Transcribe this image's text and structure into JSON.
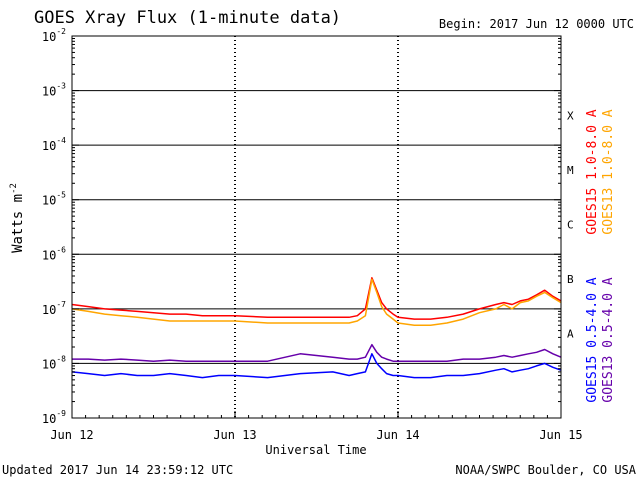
{
  "chart_data": {
    "type": "line",
    "title": "GOES Xray Flux (1-minute data)",
    "begin_label": "Begin:  2017 Jun 12 0000 UTC",
    "ylabel_text": "Watts m",
    "ylabel_sup": "-2",
    "xlabel": "Universal Time",
    "footer_left": "Updated 2017 Jun 14 23:59:12 UTC",
    "footer_right": "NOAA/SWPC Boulder, CO USA",
    "y_scale": "log",
    "ylim": [
      1e-09,
      0.01
    ],
    "y_ticks": [
      {
        "base": "10",
        "exp": "-2",
        "value": 0.01
      },
      {
        "base": "10",
        "exp": "-3",
        "value": 0.001
      },
      {
        "base": "10",
        "exp": "-4",
        "value": 0.0001
      },
      {
        "base": "10",
        "exp": "-5",
        "value": 1e-05
      },
      {
        "base": "10",
        "exp": "-6",
        "value": 1e-06
      },
      {
        "base": "10",
        "exp": "-7",
        "value": 1e-07
      },
      {
        "base": "10",
        "exp": "-8",
        "value": 1e-08
      },
      {
        "base": "10",
        "exp": "-9",
        "value": 1e-09
      }
    ],
    "x_ticks": [
      {
        "label": "Jun 12",
        "day": 0
      },
      {
        "label": "Jun 13",
        "day": 1
      },
      {
        "label": "Jun 14",
        "day": 2
      },
      {
        "label": "Jun 15",
        "day": 3
      }
    ],
    "flare_classes": [
      {
        "label": "X",
        "value": 0.0001
      },
      {
        "label": "M",
        "value": 1e-05
      },
      {
        "label": "C",
        "value": 1e-06
      },
      {
        "label": "B",
        "value": 1e-07
      },
      {
        "label": "A",
        "value": 1e-08
      }
    ],
    "series": [
      {
        "name": "GOES15 1.0-8.0 A",
        "color": "#ff0000",
        "x": [
          0.0,
          0.1,
          0.2,
          0.3,
          0.4,
          0.5,
          0.6,
          0.7,
          0.8,
          0.9,
          1.0,
          1.2,
          1.4,
          1.6,
          1.7,
          1.75,
          1.8,
          1.84,
          1.87,
          1.9,
          1.93,
          1.97,
          2.0,
          2.1,
          2.2,
          2.3,
          2.4,
          2.5,
          2.6,
          2.65,
          2.7,
          2.75,
          2.8,
          2.85,
          2.9,
          2.95,
          3.0
        ],
        "y": [
          1.2e-07,
          1.1e-07,
          1e-07,
          9.5e-08,
          9e-08,
          8.5e-08,
          8e-08,
          8e-08,
          7.5e-08,
          7.5e-08,
          7.5e-08,
          7e-08,
          7e-08,
          7e-08,
          7e-08,
          7.5e-08,
          1e-07,
          3.7e-07,
          2.2e-07,
          1.3e-07,
          1e-07,
          8e-08,
          7e-08,
          6.5e-08,
          6.5e-08,
          7e-08,
          8e-08,
          1e-07,
          1.2e-07,
          1.3e-07,
          1.2e-07,
          1.4e-07,
          1.5e-07,
          1.8e-07,
          2.2e-07,
          1.7e-07,
          1.4e-07
        ]
      },
      {
        "name": "GOES13 1.0-8.0 A",
        "color": "#ffa500",
        "x": [
          0.0,
          0.1,
          0.2,
          0.3,
          0.4,
          0.5,
          0.6,
          0.7,
          0.8,
          0.9,
          1.0,
          1.2,
          1.4,
          1.6,
          1.7,
          1.75,
          1.8,
          1.84,
          1.87,
          1.9,
          1.93,
          1.97,
          2.0,
          2.1,
          2.2,
          2.3,
          2.4,
          2.5,
          2.6,
          2.65,
          2.7,
          2.75,
          2.8,
          2.85,
          2.9,
          2.95,
          3.0
        ],
        "y": [
          1e-07,
          9e-08,
          8e-08,
          7.5e-08,
          7e-08,
          6.5e-08,
          6e-08,
          6e-08,
          6e-08,
          6e-08,
          6e-08,
          5.5e-08,
          5.5e-08,
          5.5e-08,
          5.5e-08,
          6e-08,
          7.5e-08,
          3.5e-07,
          2e-07,
          1.1e-07,
          8e-08,
          6.5e-08,
          5.5e-08,
          5e-08,
          5e-08,
          5.5e-08,
          6.5e-08,
          8.5e-08,
          1e-07,
          1.2e-07,
          1e-07,
          1.3e-07,
          1.4e-07,
          1.7e-07,
          2e-07,
          1.6e-07,
          1.3e-07
        ]
      },
      {
        "name": "GOES15 0.5-4.0 A",
        "color": "#0000ff",
        "x": [
          0.0,
          0.1,
          0.2,
          0.3,
          0.4,
          0.5,
          0.6,
          0.7,
          0.8,
          0.9,
          1.0,
          1.2,
          1.4,
          1.6,
          1.7,
          1.75,
          1.8,
          1.84,
          1.87,
          1.9,
          1.93,
          1.97,
          2.0,
          2.1,
          2.2,
          2.3,
          2.4,
          2.5,
          2.6,
          2.65,
          2.7,
          2.75,
          2.8,
          2.85,
          2.9,
          2.95,
          3.0
        ],
        "y": [
          7e-09,
          6.5e-09,
          6e-09,
          6.5e-09,
          6e-09,
          6e-09,
          6.5e-09,
          6e-09,
          5.5e-09,
          6e-09,
          6e-09,
          5.5e-09,
          6.5e-09,
          7e-09,
          6e-09,
          6.5e-09,
          7e-09,
          1.5e-08,
          1e-08,
          8e-09,
          6.5e-09,
          6e-09,
          6e-09,
          5.5e-09,
          5.5e-09,
          6e-09,
          6e-09,
          6.5e-09,
          7.5e-09,
          8e-09,
          7e-09,
          7.5e-09,
          8e-09,
          9e-09,
          1e-08,
          8.5e-09,
          7.5e-09
        ]
      },
      {
        "name": "GOES13 0.5-4.0 A",
        "color": "#6600aa",
        "x": [
          0.0,
          0.1,
          0.2,
          0.3,
          0.4,
          0.5,
          0.6,
          0.7,
          0.8,
          0.9,
          1.0,
          1.2,
          1.4,
          1.6,
          1.7,
          1.75,
          1.8,
          1.84,
          1.87,
          1.9,
          1.93,
          1.97,
          2.0,
          2.1,
          2.2,
          2.3,
          2.4,
          2.5,
          2.6,
          2.65,
          2.7,
          2.75,
          2.8,
          2.85,
          2.9,
          2.95,
          3.0
        ],
        "y": [
          1.2e-08,
          1.2e-08,
          1.15e-08,
          1.2e-08,
          1.15e-08,
          1.1e-08,
          1.15e-08,
          1.1e-08,
          1.1e-08,
          1.1e-08,
          1.1e-08,
          1.1e-08,
          1.5e-08,
          1.3e-08,
          1.2e-08,
          1.2e-08,
          1.3e-08,
          2.2e-08,
          1.6e-08,
          1.3e-08,
          1.2e-08,
          1.1e-08,
          1.1e-08,
          1.1e-08,
          1.1e-08,
          1.1e-08,
          1.2e-08,
          1.2e-08,
          1.3e-08,
          1.4e-08,
          1.3e-08,
          1.4e-08,
          1.5e-08,
          1.6e-08,
          1.8e-08,
          1.5e-08,
          1.3e-08
        ]
      }
    ]
  }
}
